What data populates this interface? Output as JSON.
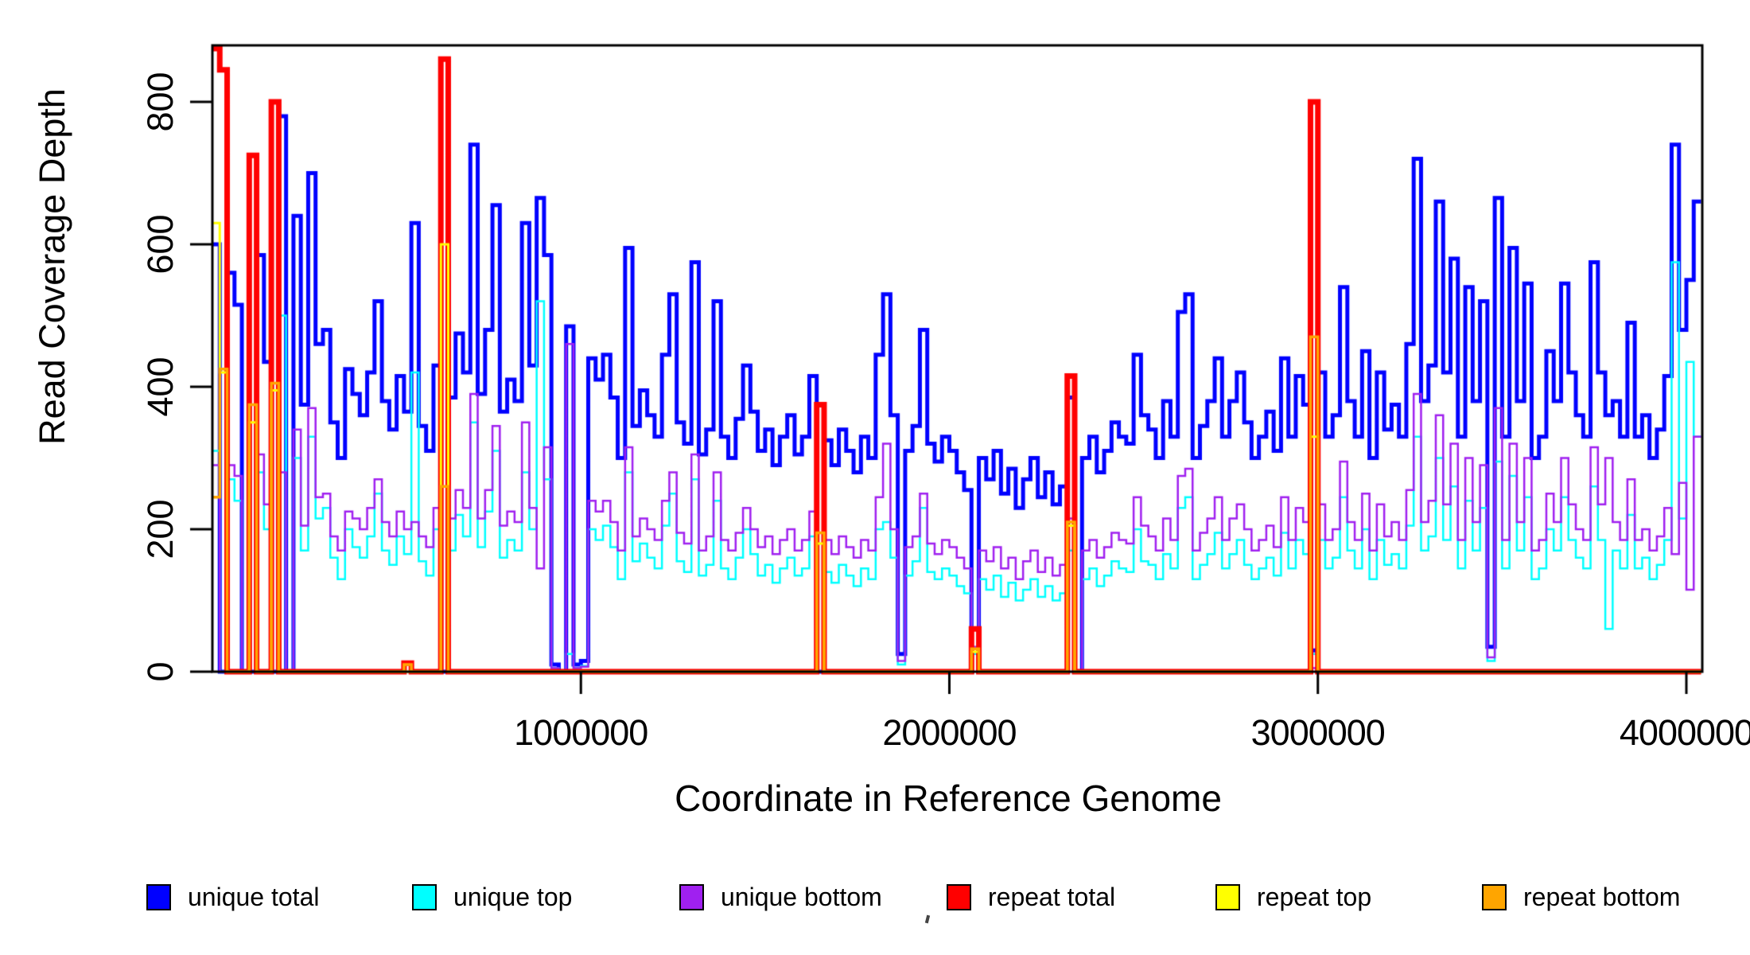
{
  "chart_data": {
    "type": "line",
    "subtype": "step-post",
    "title": "",
    "xlabel": "Coordinate in Reference Genome",
    "ylabel": "Read Coverage Depth",
    "xlim": [
      0,
      4043000
    ],
    "ylim": [
      0,
      879
    ],
    "grid": false,
    "legend_position": "bottom-horizontal",
    "bin_size": 20000,
    "x_start": 0,
    "xticks": [
      {
        "value": 1000000,
        "label": "1000000"
      },
      {
        "value": 2000000,
        "label": "2000000"
      },
      {
        "value": 3000000,
        "label": "3000000"
      },
      {
        "value": 4000000,
        "label": "4000000"
      }
    ],
    "yticks": [
      {
        "value": 0,
        "label": "0"
      },
      {
        "value": 200,
        "label": "200"
      },
      {
        "value": 400,
        "label": "400"
      },
      {
        "value": 600,
        "label": "600"
      },
      {
        "value": 800,
        "label": "800"
      }
    ],
    "series": [
      {
        "name": "unique total",
        "color": "#0000FF",
        "line_width": 5,
        "values": [
          600,
          0,
          560,
          515,
          0,
          0,
          585,
          435,
          0,
          780,
          0,
          640,
          375,
          700,
          460,
          480,
          350,
          300,
          425,
          390,
          360,
          420,
          520,
          380,
          340,
          415,
          365,
          630,
          345,
          310,
          430,
          0,
          385,
          475,
          420,
          740,
          390,
          480,
          655,
          365,
          410,
          380,
          630,
          430,
          665,
          585,
          10,
          0,
          485,
          10,
          15,
          440,
          410,
          445,
          385,
          300,
          595,
          345,
          395,
          360,
          330,
          445,
          530,
          350,
          320,
          575,
          305,
          340,
          520,
          330,
          300,
          355,
          430,
          365,
          310,
          340,
          290,
          330,
          360,
          305,
          330,
          415,
          0,
          325,
          290,
          340,
          310,
          280,
          330,
          300,
          445,
          530,
          360,
          25,
          310,
          345,
          480,
          320,
          295,
          330,
          310,
          280,
          255,
          60,
          300,
          270,
          310,
          250,
          285,
          230,
          270,
          300,
          245,
          280,
          235,
          260,
          385,
          0,
          300,
          330,
          280,
          310,
          350,
          330,
          320,
          445,
          360,
          340,
          300,
          380,
          330,
          505,
          530,
          300,
          345,
          380,
          440,
          330,
          380,
          420,
          350,
          300,
          330,
          365,
          310,
          440,
          330,
          415,
          375,
          30,
          420,
          330,
          360,
          540,
          380,
          330,
          450,
          300,
          420,
          340,
          375,
          330,
          460,
          720,
          380,
          430,
          660,
          420,
          580,
          330,
          540,
          380,
          520,
          35,
          665,
          330,
          595,
          380,
          545,
          300,
          330,
          450,
          380,
          545,
          420,
          360,
          330,
          575,
          420,
          360,
          380,
          330,
          490,
          330,
          360,
          300,
          340,
          415,
          740,
          480,
          550,
          660
        ]
      },
      {
        "name": "unique top",
        "color": "#00FFFF",
        "line_width": 2.5,
        "values": [
          310,
          0,
          270,
          240,
          0,
          0,
          280,
          200,
          0,
          500,
          0,
          300,
          170,
          330,
          215,
          230,
          160,
          130,
          200,
          175,
          160,
          190,
          250,
          170,
          150,
          190,
          165,
          420,
          155,
          135,
          200,
          0,
          170,
          220,
          190,
          350,
          175,
          225,
          310,
          160,
          185,
          170,
          280,
          200,
          520,
          270,
          5,
          0,
          25,
          5,
          8,
          200,
          185,
          205,
          175,
          130,
          280,
          155,
          180,
          160,
          145,
          205,
          250,
          155,
          140,
          270,
          135,
          150,
          240,
          145,
          130,
          160,
          200,
          165,
          135,
          150,
          125,
          145,
          160,
          135,
          145,
          190,
          0,
          140,
          125,
          150,
          135,
          120,
          145,
          130,
          200,
          210,
          160,
          10,
          135,
          155,
          230,
          140,
          130,
          145,
          135,
          120,
          110,
          25,
          130,
          115,
          135,
          105,
          125,
          100,
          115,
          130,
          105,
          120,
          100,
          110,
          170,
          0,
          130,
          145,
          120,
          135,
          155,
          145,
          140,
          200,
          155,
          150,
          130,
          165,
          145,
          230,
          245,
          130,
          150,
          165,
          195,
          145,
          165,
          185,
          150,
          130,
          145,
          160,
          135,
          195,
          145,
          185,
          165,
          25,
          185,
          145,
          160,
          245,
          170,
          145,
          200,
          130,
          185,
          150,
          165,
          145,
          205,
          330,
          170,
          190,
          300,
          185,
          260,
          145,
          240,
          170,
          230,
          15,
          295,
          145,
          275,
          170,
          245,
          130,
          145,
          200,
          170,
          245,
          185,
          160,
          145,
          260,
          185,
          60,
          170,
          145,
          220,
          145,
          160,
          130,
          150,
          185,
          575,
          215,
          435,
          330
        ]
      },
      {
        "name": "unique bottom",
        "color": "#A020F0",
        "line_width": 2.5,
        "values": [
          290,
          0,
          290,
          275,
          0,
          0,
          305,
          235,
          0,
          280,
          0,
          340,
          205,
          370,
          245,
          250,
          190,
          170,
          225,
          215,
          200,
          230,
          270,
          210,
          190,
          225,
          200,
          210,
          190,
          175,
          230,
          0,
          215,
          255,
          230,
          390,
          215,
          255,
          345,
          205,
          225,
          210,
          350,
          230,
          145,
          315,
          5,
          0,
          460,
          5,
          7,
          240,
          225,
          240,
          210,
          170,
          315,
          190,
          215,
          200,
          185,
          240,
          280,
          195,
          180,
          305,
          170,
          190,
          280,
          185,
          170,
          195,
          230,
          200,
          175,
          190,
          165,
          185,
          200,
          170,
          185,
          225,
          0,
          185,
          165,
          190,
          175,
          160,
          185,
          170,
          245,
          320,
          200,
          15,
          175,
          190,
          250,
          180,
          165,
          185,
          175,
          160,
          145,
          35,
          170,
          155,
          175,
          145,
          160,
          130,
          155,
          170,
          140,
          160,
          135,
          150,
          215,
          0,
          170,
          185,
          160,
          175,
          195,
          185,
          180,
          245,
          205,
          190,
          170,
          215,
          185,
          275,
          285,
          170,
          195,
          215,
          245,
          185,
          215,
          235,
          200,
          170,
          185,
          205,
          175,
          245,
          185,
          230,
          210,
          5,
          235,
          185,
          200,
          295,
          210,
          185,
          250,
          170,
          235,
          190,
          210,
          185,
          255,
          390,
          210,
          240,
          360,
          235,
          320,
          185,
          300,
          210,
          290,
          20,
          370,
          185,
          320,
          210,
          300,
          170,
          185,
          250,
          210,
          300,
          235,
          200,
          185,
          315,
          235,
          300,
          210,
          185,
          270,
          185,
          200,
          170,
          190,
          230,
          165,
          265,
          115,
          330
        ]
      },
      {
        "name": "repeat total",
        "color": "#FF0000",
        "line_width": 7,
        "values": [
          875,
          845,
          0,
          0,
          0,
          725,
          0,
          0,
          800,
          0,
          0,
          0,
          0,
          0,
          0,
          0,
          0,
          0,
          0,
          0,
          0,
          0,
          0,
          0,
          0,
          0,
          12,
          0,
          0,
          0,
          0,
          860,
          0,
          0,
          0,
          0,
          0,
          0,
          0,
          0,
          0,
          0,
          0,
          0,
          0,
          0,
          0,
          0,
          0,
          0,
          0,
          0,
          0,
          0,
          0,
          0,
          0,
          0,
          0,
          0,
          0,
          0,
          0,
          0,
          0,
          0,
          0,
          0,
          0,
          0,
          0,
          0,
          0,
          0,
          0,
          0,
          0,
          0,
          0,
          0,
          0,
          0,
          375,
          0,
          0,
          0,
          0,
          0,
          0,
          0,
          0,
          0,
          0,
          0,
          0,
          0,
          0,
          0,
          0,
          0,
          0,
          0,
          0,
          60,
          0,
          0,
          0,
          0,
          0,
          0,
          0,
          0,
          0,
          0,
          0,
          0,
          415,
          0,
          0,
          0,
          0,
          0,
          0,
          0,
          0,
          0,
          0,
          0,
          0,
          0,
          0,
          0,
          0,
          0,
          0,
          0,
          0,
          0,
          0,
          0,
          0,
          0,
          0,
          0,
          0,
          0,
          0,
          0,
          0,
          800,
          0,
          0,
          0,
          0,
          0,
          0,
          0,
          0,
          0,
          0,
          0,
          0,
          0,
          0,
          0,
          0,
          0,
          0,
          0,
          0,
          0,
          0,
          0,
          0,
          0,
          0,
          0,
          0,
          0,
          0,
          0,
          0,
          0,
          0,
          0,
          0,
          0,
          0,
          0,
          0,
          0,
          0,
          0,
          0,
          0,
          0,
          0,
          0,
          0,
          0,
          0,
          0
        ]
      },
      {
        "name": "repeat top",
        "color": "#FFFF00",
        "line_width": 3,
        "values": [
          630,
          420,
          0,
          0,
          0,
          350,
          0,
          0,
          395,
          0,
          0,
          0,
          0,
          0,
          0,
          0,
          0,
          0,
          0,
          0,
          0,
          0,
          0,
          0,
          0,
          0,
          0,
          0,
          0,
          0,
          0,
          600,
          0,
          0,
          0,
          0,
          0,
          0,
          0,
          0,
          0,
          0,
          0,
          0,
          0,
          0,
          0,
          0,
          0,
          0,
          0,
          0,
          0,
          0,
          0,
          0,
          0,
          0,
          0,
          0,
          0,
          0,
          0,
          0,
          0,
          0,
          0,
          0,
          0,
          0,
          0,
          0,
          0,
          0,
          0,
          0,
          0,
          0,
          0,
          0,
          0,
          0,
          180,
          0,
          0,
          0,
          0,
          0,
          0,
          0,
          0,
          0,
          0,
          0,
          0,
          0,
          0,
          0,
          0,
          0,
          0,
          0,
          0,
          28,
          0,
          0,
          0,
          0,
          0,
          0,
          0,
          0,
          0,
          0,
          0,
          0,
          205,
          0,
          0,
          0,
          0,
          0,
          0,
          0,
          0,
          0,
          0,
          0,
          0,
          0,
          0,
          0,
          0,
          0,
          0,
          0,
          0,
          0,
          0,
          0,
          0,
          0,
          0,
          0,
          0,
          0,
          0,
          0,
          0,
          330,
          0,
          0,
          0,
          0,
          0,
          0,
          0,
          0,
          0,
          0,
          0,
          0,
          0,
          0,
          0,
          0,
          0,
          0,
          0,
          0,
          0,
          0,
          0,
          0,
          0,
          0,
          0,
          0,
          0,
          0,
          0,
          0,
          0,
          0,
          0,
          0,
          0,
          0,
          0,
          0,
          0,
          0,
          0,
          0,
          0,
          0,
          0,
          0,
          0,
          0,
          0,
          0
        ]
      },
      {
        "name": "repeat bottom",
        "color": "#FFA500",
        "line_width": 3.5,
        "values": [
          245,
          425,
          0,
          0,
          0,
          375,
          0,
          0,
          405,
          0,
          0,
          0,
          0,
          0,
          0,
          0,
          0,
          0,
          0,
          0,
          0,
          0,
          0,
          0,
          0,
          0,
          10,
          0,
          0,
          0,
          0,
          260,
          0,
          0,
          0,
          0,
          0,
          0,
          0,
          0,
          0,
          0,
          0,
          0,
          0,
          0,
          0,
          0,
          0,
          0,
          0,
          0,
          0,
          0,
          0,
          0,
          0,
          0,
          0,
          0,
          0,
          0,
          0,
          0,
          0,
          0,
          0,
          0,
          0,
          0,
          0,
          0,
          0,
          0,
          0,
          0,
          0,
          0,
          0,
          0,
          0,
          0,
          195,
          0,
          0,
          0,
          0,
          0,
          0,
          0,
          0,
          0,
          0,
          0,
          0,
          0,
          0,
          0,
          0,
          0,
          0,
          0,
          0,
          32,
          0,
          0,
          0,
          0,
          0,
          0,
          0,
          0,
          0,
          0,
          0,
          0,
          210,
          0,
          0,
          0,
          0,
          0,
          0,
          0,
          0,
          0,
          0,
          0,
          0,
          0,
          0,
          0,
          0,
          0,
          0,
          0,
          0,
          0,
          0,
          0,
          0,
          0,
          0,
          0,
          0,
          0,
          0,
          0,
          0,
          470,
          0,
          0,
          0,
          0,
          0,
          0,
          0,
          0,
          0,
          0,
          0,
          0,
          0,
          0,
          0,
          0,
          0,
          0,
          0,
          0,
          0,
          0,
          0,
          0,
          0,
          0,
          0,
          0,
          0,
          0,
          0,
          0,
          0,
          0,
          0,
          0,
          0,
          0,
          0,
          0,
          0,
          0,
          0,
          0,
          0,
          0,
          0,
          0,
          0,
          0,
          0,
          0
        ]
      }
    ]
  },
  "legend": {
    "items": [
      {
        "label": "unique total"
      },
      {
        "label": "unique top"
      },
      {
        "label": "unique bottom"
      },
      {
        "label": "repeat total"
      },
      {
        "label": "repeat top"
      },
      {
        "label": "repeat bottom"
      }
    ]
  }
}
